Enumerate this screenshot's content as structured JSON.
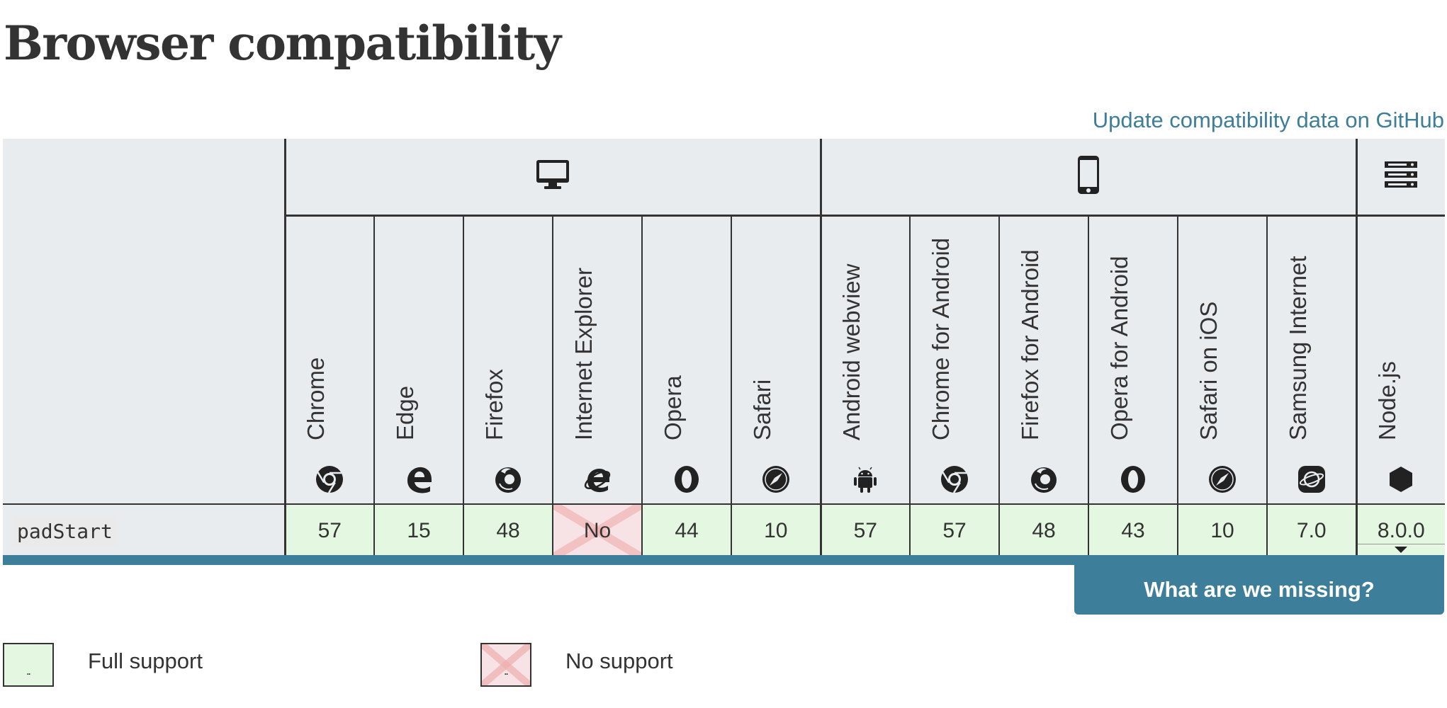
{
  "page": {
    "title": "Browser compatibility",
    "github_link": "Update compatibility data on GitHub"
  },
  "platforms": {
    "desktop": "desktop-icon",
    "mobile": "mobile-icon",
    "server": "server-icon"
  },
  "browsers": [
    {
      "name": "Chrome",
      "icon": "chrome-icon"
    },
    {
      "name": "Edge",
      "icon": "edge-icon"
    },
    {
      "name": "Firefox",
      "icon": "firefox-icon"
    },
    {
      "name": "Internet Explorer",
      "icon": "internet-explorer-icon"
    },
    {
      "name": "Opera",
      "icon": "opera-icon"
    },
    {
      "name": "Safari",
      "icon": "safari-icon"
    },
    {
      "name": "Android webview",
      "icon": "android-icon"
    },
    {
      "name": "Chrome for Android",
      "icon": "chrome-icon"
    },
    {
      "name": "Firefox for Android",
      "icon": "firefox-icon"
    },
    {
      "name": "Opera for Android",
      "icon": "opera-icon"
    },
    {
      "name": "Safari on iOS",
      "icon": "safari-icon"
    },
    {
      "name": "Samsung Internet",
      "icon": "samsung-internet-icon"
    },
    {
      "name": "Node.js",
      "icon": "nodejs-icon"
    }
  ],
  "feature": {
    "name": "padStart",
    "support": [
      "57",
      "15",
      "48",
      "No",
      "44",
      "10",
      "57",
      "57",
      "48",
      "43",
      "10",
      "7.0",
      "8.0.0"
    ]
  },
  "missing_button": "What are we missing?",
  "legend": {
    "full_label": "Full support",
    "none_label": "No support"
  },
  "colors": {
    "accent": "#3d7e9a",
    "full_support_bg": "#e4f8e1",
    "no_support_bg": "#f7e3e5",
    "header_bg": "#e9ecef"
  }
}
